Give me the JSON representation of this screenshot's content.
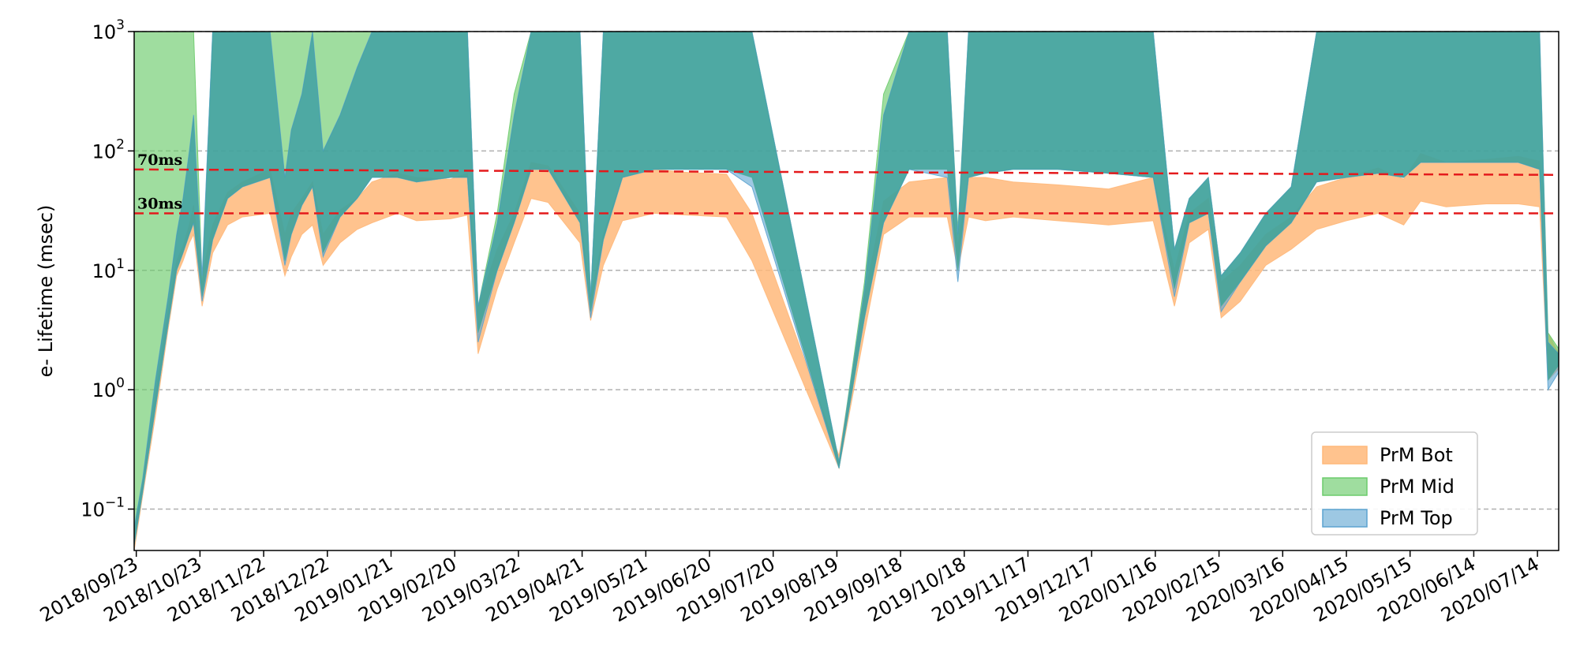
{
  "chart_data": {
    "type": "area",
    "ylabel": "e- Lifetime (msec)",
    "yscale": "log",
    "ylim": [
      0.045,
      1000
    ],
    "yticks": [
      {
        "value": 0.1,
        "base": "10",
        "exp": "−1"
      },
      {
        "value": 1,
        "base": "10",
        "exp": "0"
      },
      {
        "value": 10,
        "base": "10",
        "exp": "1"
      },
      {
        "value": 100,
        "base": "10",
        "exp": "2"
      },
      {
        "value": 1000,
        "base": "10",
        "exp": "3"
      }
    ],
    "xlim": [
      "2018-09-22",
      "2020-07-24"
    ],
    "xticks": [
      "2018/09/23",
      "2018/10/23",
      "2018/11/22",
      "2018/12/22",
      "2019/01/21",
      "2019/02/20",
      "2019/03/22",
      "2019/04/21",
      "2019/05/21",
      "2019/06/20",
      "2019/07/20",
      "2019/08/19",
      "2019/09/18",
      "2019/10/18",
      "2019/11/17",
      "2019/12/17",
      "2020/01/16",
      "2020/02/15",
      "2020/03/16",
      "2020/04/15",
      "2020/05/15",
      "2020/06/14",
      "2020/07/14"
    ],
    "grid": "horizontal dashed at decades",
    "reference_lines": [
      {
        "value": 70,
        "label": "70ms",
        "color": "#e41a1c",
        "value_end": 63
      },
      {
        "value": 30,
        "label": "30ms",
        "color": "#e41a1c",
        "value_end": 30
      }
    ],
    "legend": {
      "position": "lower-right",
      "entries": [
        "PrM Bot",
        "PrM Mid",
        "PrM Top"
      ]
    },
    "colors": {
      "PrM Bot": "#ffb87a",
      "PrM Mid": "#6ccb6c",
      "PrM Top": "#5ba3d0",
      "overlap": "#2e9a8e"
    },
    "series": [
      {
        "name": "PrM Bot",
        "x": [
          "2018-09-22",
          "2018-09-26",
          "2018-10-02",
          "2018-10-08",
          "2018-10-12",
          "2018-10-15",
          "2018-10-18",
          "2018-10-20",
          "2018-10-24",
          "2018-10-29",
          "2018-11-05",
          "2018-11-12",
          "2018-11-25",
          "2018-12-02",
          "2018-12-05",
          "2018-12-10",
          "2018-12-15",
          "2018-12-20",
          "2018-12-28",
          "2019-01-05",
          "2019-01-12",
          "2019-01-24",
          "2019-02-02",
          "2019-02-18",
          "2019-02-26",
          "2019-03-03",
          "2019-03-12",
          "2019-03-20",
          "2019-03-28",
          "2019-04-05",
          "2019-04-20",
          "2019-04-25",
          "2019-05-01",
          "2019-05-10",
          "2019-05-25",
          "2019-06-10",
          "2019-06-28",
          "2019-07-10",
          "2019-08-20",
          "2019-09-01",
          "2019-09-10",
          "2019-09-22",
          "2019-10-10",
          "2019-10-15",
          "2019-10-20",
          "2019-10-28",
          "2019-11-10",
          "2019-12-01",
          "2019-12-25",
          "2020-01-15",
          "2020-01-25",
          "2020-02-01",
          "2020-02-10",
          "2020-02-16",
          "2020-02-25",
          "2020-03-08",
          "2020-03-20",
          "2020-04-01",
          "2020-04-15",
          "2020-04-30",
          "2020-05-12",
          "2020-05-20",
          "2020-06-01",
          "2020-06-20",
          "2020-07-05",
          "2020-07-15",
          "2020-07-19",
          "2020-07-24"
        ],
        "low": [
          0.045,
          0.13,
          0.6,
          3.2,
          9,
          12,
          17,
          20,
          5,
          14,
          24,
          28,
          30,
          9,
          13,
          20,
          24,
          11,
          17,
          22,
          25,
          30,
          26,
          27,
          29,
          2,
          7,
          17,
          40,
          37,
          17,
          3.8,
          11,
          26,
          30,
          29,
          28,
          12,
          0.22,
          3,
          20,
          28,
          28,
          10,
          28,
          26,
          28,
          26,
          24,
          26,
          5,
          17,
          22,
          4,
          5.5,
          11,
          15,
          22,
          26,
          30,
          24,
          38,
          34,
          36,
          36,
          34,
          1.2,
          1.5
        ],
        "high": [
          0.06,
          0.16,
          0.9,
          4.5,
          12,
          16,
          24,
          35,
          9,
          24,
          45,
          55,
          70,
          20,
          30,
          40,
          55,
          20,
          32,
          40,
          55,
          65,
          60,
          58,
          65,
          5,
          15,
          30,
          80,
          75,
          30,
          6,
          20,
          60,
          70,
          66,
          64,
          30,
          0.28,
          6,
          38,
          55,
          60,
          16,
          60,
          60,
          55,
          52,
          48,
          60,
          10,
          30,
          40,
          8,
          11,
          20,
          28,
          50,
          60,
          72,
          58,
          95,
          80,
          85,
          90,
          82,
          3,
          2
        ]
      },
      {
        "name": "PrM Mid",
        "x": [
          "2018-09-22",
          "2018-09-26",
          "2018-10-02",
          "2018-10-08",
          "2018-10-12",
          "2018-10-15",
          "2018-10-18",
          "2018-10-20",
          "2018-10-24",
          "2018-10-29",
          "2018-11-05",
          "2018-11-12",
          "2018-11-25",
          "2018-12-02",
          "2018-12-05",
          "2018-12-10",
          "2018-12-15",
          "2018-12-20",
          "2018-12-28",
          "2019-01-05",
          "2019-01-12",
          "2019-01-24",
          "2019-02-02",
          "2019-02-18",
          "2019-02-26",
          "2019-03-03",
          "2019-03-12",
          "2019-03-20",
          "2019-03-28",
          "2019-04-05",
          "2019-04-20",
          "2019-04-25",
          "2019-05-01",
          "2019-05-10",
          "2019-05-25",
          "2019-06-10",
          "2019-06-28",
          "2019-07-10",
          "2019-08-20",
          "2019-09-01",
          "2019-09-10",
          "2019-09-22",
          "2019-10-10",
          "2019-10-15",
          "2019-10-20",
          "2019-10-28",
          "2019-11-10",
          "2019-12-01",
          "2019-12-25",
          "2020-01-15",
          "2020-01-25",
          "2020-02-01",
          "2020-02-10",
          "2020-02-16",
          "2020-02-25",
          "2020-03-08",
          "2020-03-20",
          "2020-04-01",
          "2020-04-15",
          "2020-04-30",
          "2020-05-12",
          "2020-05-20",
          "2020-06-01",
          "2020-06-20",
          "2020-07-05",
          "2020-07-15",
          "2020-07-19",
          "2020-07-24"
        ],
        "low": [
          0.05,
          0.14,
          0.7,
          3.5,
          10,
          14,
          20,
          25,
          6,
          18,
          40,
          50,
          60,
          12,
          20,
          35,
          50,
          14,
          28,
          40,
          60,
          60,
          55,
          60,
          60,
          3,
          10,
          25,
          70,
          70,
          25,
          4.5,
          18,
          60,
          70,
          70,
          70,
          60,
          0.22,
          4,
          25,
          70,
          70,
          10,
          60,
          65,
          70,
          70,
          65,
          60,
          7,
          25,
          30,
          5,
          8,
          16,
          25,
          55,
          60,
          65,
          60,
          80,
          80,
          80,
          80,
          70,
          1.2,
          1.6
        ],
        "high": [
          1000,
          1000,
          1000,
          1000,
          1000,
          1000,
          1000,
          1000,
          8,
          1000,
          1000,
          1000,
          1000,
          1000,
          1000,
          1000,
          1000,
          1000,
          1000,
          1000,
          1000,
          1000,
          1000,
          1000,
          1000,
          5,
          30,
          300,
          1000,
          1000,
          1000,
          6,
          1000,
          1000,
          1000,
          1000,
          1000,
          1000,
          0.25,
          8,
          300,
          1000,
          1000,
          22,
          1000,
          1000,
          1000,
          1000,
          1000,
          1000,
          15,
          40,
          60,
          9,
          14,
          30,
          50,
          1000,
          1000,
          1000,
          1000,
          1000,
          1000,
          1000,
          1000,
          1000,
          3,
          2.2
        ]
      },
      {
        "name": "PrM Top",
        "x": [
          "2018-09-22",
          "2018-09-26",
          "2018-10-02",
          "2018-10-08",
          "2018-10-12",
          "2018-10-15",
          "2018-10-18",
          "2018-10-20",
          "2018-10-24",
          "2018-10-29",
          "2018-11-05",
          "2018-11-12",
          "2018-11-25",
          "2018-12-02",
          "2018-12-05",
          "2018-12-10",
          "2018-12-15",
          "2018-12-20",
          "2018-12-28",
          "2019-01-05",
          "2019-01-12",
          "2019-01-24",
          "2019-02-02",
          "2019-02-18",
          "2019-02-26",
          "2019-03-03",
          "2019-03-12",
          "2019-03-20",
          "2019-03-28",
          "2019-04-05",
          "2019-04-20",
          "2019-04-25",
          "2019-05-01",
          "2019-05-10",
          "2019-05-25",
          "2019-06-10",
          "2019-06-28",
          "2019-07-10",
          "2019-08-20",
          "2019-09-01",
          "2019-09-10",
          "2019-09-22",
          "2019-10-10",
          "2019-10-15",
          "2019-10-20",
          "2019-10-28",
          "2019-11-10",
          "2019-12-01",
          "2019-12-25",
          "2020-01-15",
          "2020-01-25",
          "2020-02-01",
          "2020-02-10",
          "2020-02-16",
          "2020-02-25",
          "2020-03-08",
          "2020-03-20",
          "2020-04-01",
          "2020-04-15",
          "2020-04-30",
          "2020-05-12",
          "2020-05-20",
          "2020-06-01",
          "2020-06-20",
          "2020-07-05",
          "2020-07-15",
          "2020-07-19",
          "2020-07-24"
        ],
        "low": [
          0.05,
          0.14,
          0.7,
          3.5,
          10,
          14,
          20,
          25,
          5.5,
          18,
          40,
          50,
          60,
          11,
          20,
          35,
          50,
          13,
          28,
          40,
          60,
          60,
          55,
          60,
          60,
          2.5,
          10,
          25,
          70,
          70,
          25,
          4,
          18,
          60,
          70,
          70,
          70,
          50,
          0.22,
          4,
          25,
          70,
          60,
          8,
          60,
          65,
          70,
          70,
          65,
          60,
          6,
          25,
          30,
          4.5,
          8,
          16,
          25,
          55,
          60,
          65,
          60,
          80,
          80,
          80,
          80,
          70,
          1.0,
          1.4
        ],
        "high": [
          0.07,
          0.18,
          1.2,
          6,
          20,
          40,
          100,
          200,
          9,
          1000,
          1000,
          1000,
          1000,
          60,
          150,
          300,
          1000,
          100,
          200,
          500,
          1000,
          1000,
          1000,
          1000,
          1000,
          5,
          25,
          200,
          1000,
          1000,
          1000,
          6,
          1000,
          1000,
          1000,
          1000,
          1000,
          1000,
          0.25,
          7,
          200,
          1000,
          1000,
          20,
          1000,
          1000,
          1000,
          1000,
          1000,
          1000,
          15,
          40,
          60,
          9,
          14,
          30,
          50,
          1000,
          1000,
          1000,
          1000,
          1000,
          1000,
          1000,
          1000,
          1000,
          2.5,
          2
        ]
      }
    ]
  }
}
